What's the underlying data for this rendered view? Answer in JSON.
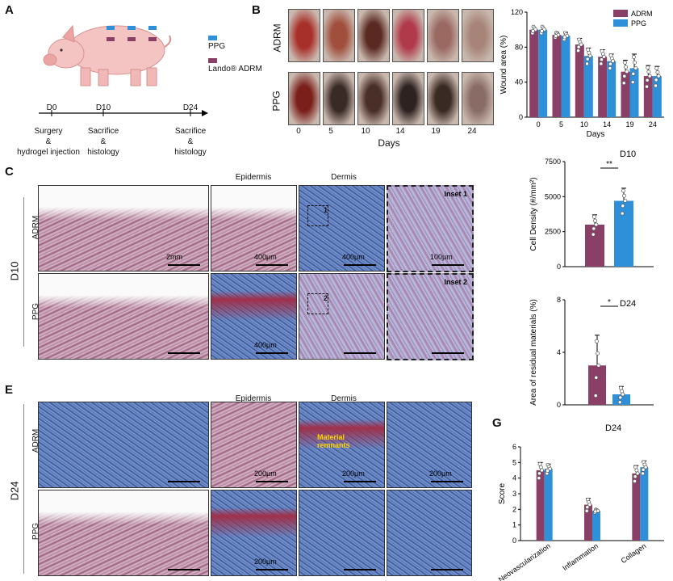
{
  "panels": {
    "A": "A",
    "B": "B",
    "C": "C",
    "E": "E",
    "G": "G"
  },
  "panelA": {
    "legend": [
      {
        "label": "PPG",
        "color": "#2e90d8"
      },
      {
        "label": "Lando® ADRM",
        "color": "#8a3f66"
      }
    ],
    "timeline": [
      {
        "day": "D0",
        "desc": "Surgery\n&\nhydrogel injection"
      },
      {
        "day": "D10",
        "desc": "Sacrifice\n&\nhistology"
      },
      {
        "day": "D24",
        "desc": "Sacrifice\n&\nhistology"
      }
    ]
  },
  "panelB": {
    "row_labels": [
      "ADRM",
      "PPG"
    ],
    "days": [
      "0",
      "5",
      "10",
      "14",
      "19",
      "24"
    ],
    "xlabel": "Days"
  },
  "panelC": {
    "row_group": "D10",
    "rows": [
      "ADRM",
      "PPG"
    ],
    "col_headers": [
      "Epidermis",
      "Dermis"
    ],
    "insets": [
      "Inset 1",
      "Inset 2"
    ],
    "box_labels": [
      "1",
      "2"
    ],
    "scale_bars": {
      "c1": "2mm",
      "c2": "400µm",
      "c3": "400µm",
      "c4": "100µm",
      "c6": "400µm"
    }
  },
  "panelE": {
    "row_group": "D24",
    "rows": [
      "ADRM",
      "PPG"
    ],
    "col_headers": [
      "Epidermis",
      "Dermis"
    ],
    "annotation": "Material\nremnants",
    "scale_bars": {
      "e2": "200µm",
      "e3": "200µm",
      "e4": "200µm",
      "e6": "200µm"
    }
  },
  "chart_data": [
    {
      "type": "bar",
      "ylabel": "Wound area (%)",
      "xlabel": "Days",
      "categories": [
        "0",
        "5",
        "10",
        "14",
        "19",
        "24"
      ],
      "ylim": [
        0,
        120
      ],
      "yticks": [
        "0",
        "40",
        "80",
        "120"
      ],
      "legend": "top-right",
      "series": [
        {
          "name": "ADRM",
          "color": "#8a3f66",
          "values": [
            100,
            94,
            83,
            69,
            52,
            47
          ],
          "err": [
            0,
            3,
            7,
            8,
            13,
            12
          ]
        },
        {
          "name": "PPG",
          "color": "#2e90d8",
          "values": [
            100,
            93,
            70,
            64,
            56,
            47
          ],
          "err": [
            0,
            4,
            9,
            8,
            16,
            11
          ]
        }
      ]
    },
    {
      "type": "bar",
      "title": "D10",
      "ylabel": "Cell Density (#/mm²)",
      "ylim": [
        0,
        7500
      ],
      "yticks": [
        "0",
        "2500",
        "5000",
        "7500"
      ],
      "significance": "**",
      "series": [
        {
          "color": "#8a3f66",
          "values": [
            3000
          ],
          "err": [
            700
          ]
        },
        {
          "color": "#2e90d8",
          "values": [
            4700
          ],
          "err": [
            900
          ]
        }
      ]
    },
    {
      "type": "bar",
      "title": "D24",
      "ylabel": "Area of residual materials (%)",
      "ylim": [
        0,
        8
      ],
      "yticks": [
        "0",
        "4",
        "8"
      ],
      "significance": "*",
      "series": [
        {
          "color": "#8a3f66",
          "values": [
            3.0
          ],
          "err": [
            2.3
          ]
        },
        {
          "color": "#2e90d8",
          "values": [
            0.8
          ],
          "err": [
            0.6
          ]
        }
      ]
    },
    {
      "type": "bar",
      "title": "D24",
      "ylabel": "Score",
      "categories": [
        "Neovascularization",
        "Inflammation",
        "Collagen"
      ],
      "ylim": [
        0,
        6
      ],
      "yticks": [
        "0",
        "1",
        "2",
        "3",
        "4",
        "5",
        "6"
      ],
      "series": [
        {
          "color": "#8a3f66",
          "values": [
            4.5,
            2.3,
            4.3
          ],
          "err": [
            0.5,
            0.4,
            0.5
          ]
        },
        {
          "color": "#2e90d8",
          "values": [
            4.6,
            1.9,
            4.7
          ],
          "err": [
            0.3,
            0.1,
            0.4
          ]
        }
      ]
    }
  ]
}
